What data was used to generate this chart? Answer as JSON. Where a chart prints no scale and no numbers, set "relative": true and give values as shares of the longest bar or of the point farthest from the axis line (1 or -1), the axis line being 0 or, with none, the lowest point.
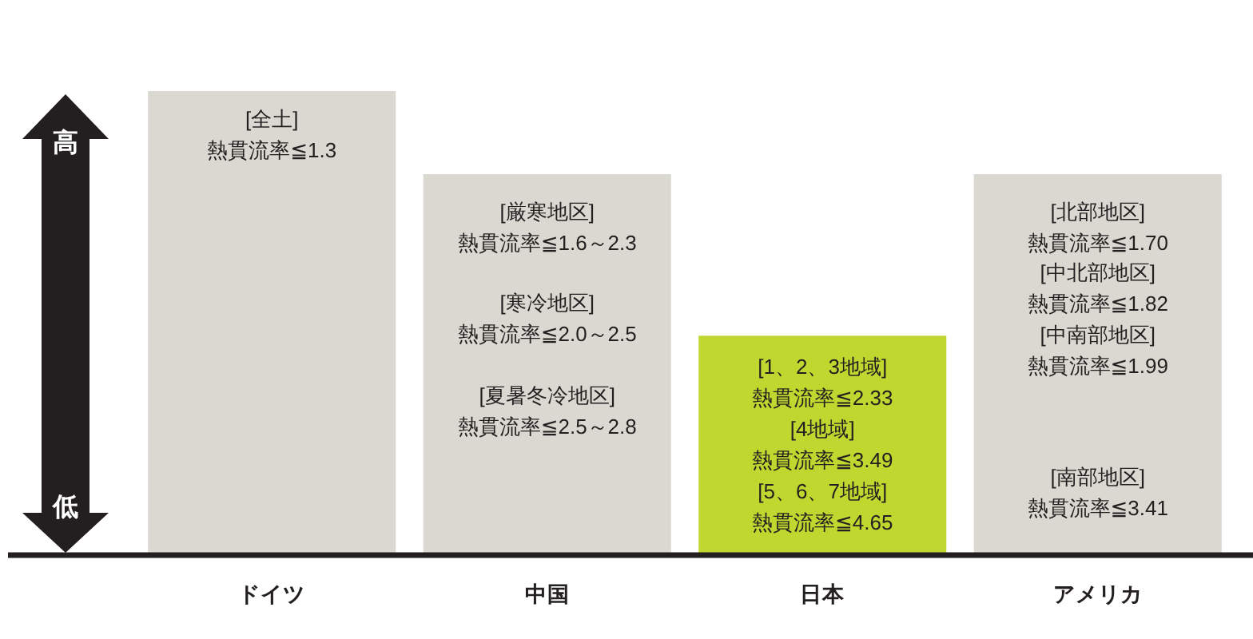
{
  "chart_data": {
    "type": "bar",
    "relative": true,
    "categories": [
      "ドイツ",
      "中国",
      "日本",
      "アメリカ"
    ],
    "values": [
      1,
      0.82,
      0.47,
      0.82
    ],
    "colors": [
      "#d9d8d1",
      "#d9d8d1",
      "#c0d730",
      "#d9d8d1"
    ],
    "annotations": [
      "高",
      "低",
      "[全土]\n熱貫流率≦1.3",
      "[厳寒地区]\n熱貫流率≦1.6～2.3",
      "[寒冷地区]\n熱貫流率≦2.0～2.5",
      "[夏暑冬冷地区]\n熱貫流率≦2.5～2.8",
      "[1、2、3地域]\n熱貫流率≦2.33",
      "[4地域]\n熱貫流率≦3.49",
      "[5、6、7地域]\n熱貫流率≦4.65",
      "[北部地区]\n熱貫流率≦1.70",
      "[中北部地区]\n熱貫流率≦1.82",
      "[中南部地区]\n熱貫流率≦1.99",
      "[南部地区]\n熱貫流率≦3.41"
    ]
  }
}
